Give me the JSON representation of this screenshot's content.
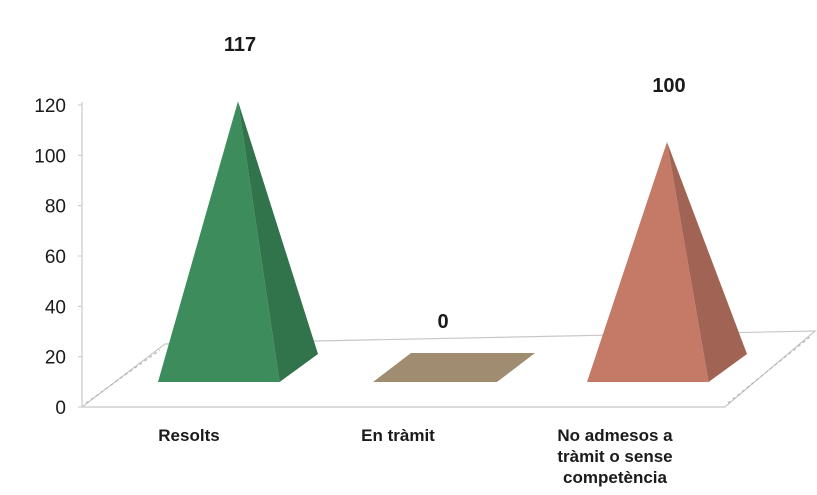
{
  "chart_data": {
    "type": "bar",
    "shape": "pyramid-3d",
    "categories": [
      "Resolts",
      "En tràmit",
      "No admesos a tràmit o sense competència"
    ],
    "category_lines": [
      [
        "Resolts"
      ],
      [
        "En tràmit"
      ],
      [
        "No admesos a",
        "tràmit o sense",
        "competència"
      ]
    ],
    "values": [
      117,
      0,
      100
    ],
    "data_labels": [
      "117",
      "0",
      "100"
    ],
    "ylim": [
      0,
      120
    ],
    "yticks": [
      "0",
      "20",
      "40",
      "60",
      "80",
      "100",
      "120"
    ],
    "colors": [
      "#3c8c5c",
      "#a08c70",
      "#c47a66"
    ],
    "grid": false,
    "legend": "none"
  }
}
